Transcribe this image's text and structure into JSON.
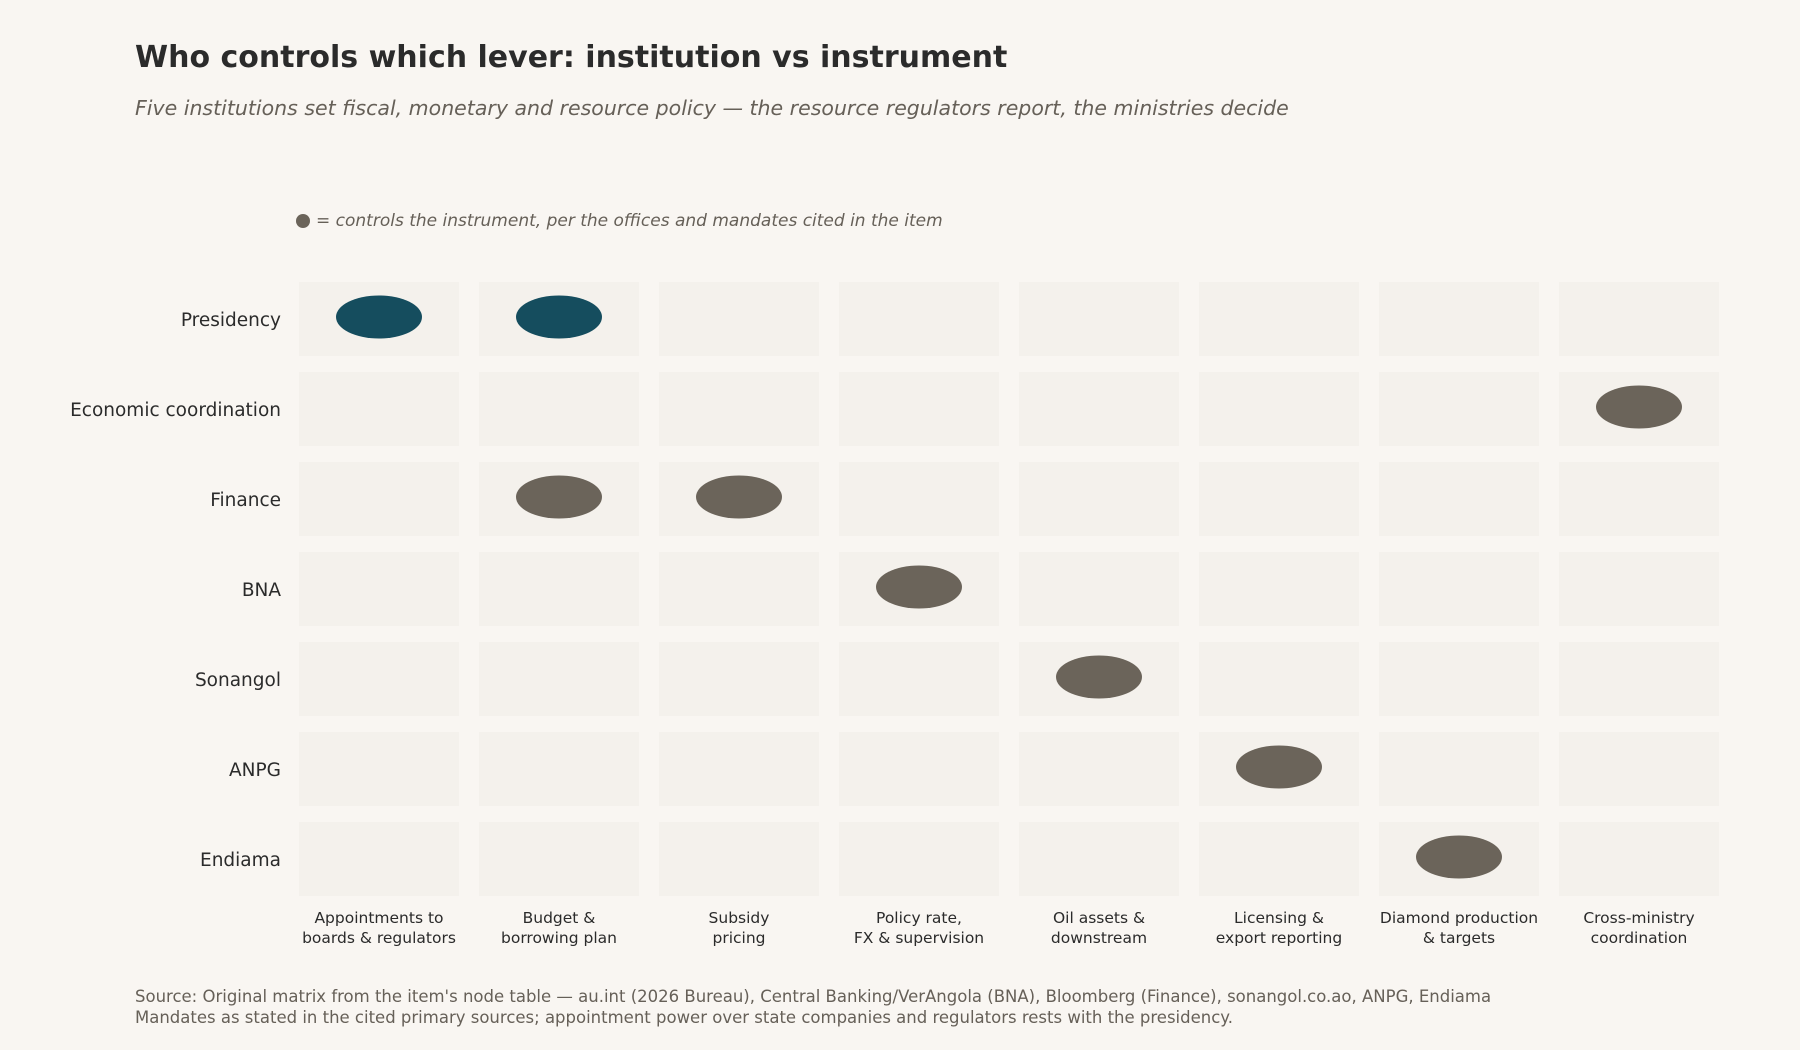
{
  "title": "Who controls which lever: institution vs instrument",
  "subtitle": "Five institutions set fiscal, monetary and resource policy — the resource regulators report, the ministries decide",
  "legend": {
    "symbol": "●",
    "text": "= controls the instrument, per the offices and mandates cited in the item"
  },
  "source": {
    "line1": "Source: Original matrix from the item's node table — au.int (2026 Bureau), Central Banking/VerAngola (BNA), Bloomberg (Finance), sonangol.co.ao, ANPG, Endiama",
    "line2": "Mandates as stated in the cited primary sources; appointment power over state companies and regulators rests with the presidency."
  },
  "colors": {
    "background": "#f9f6f2",
    "cell": "#f4f1ec",
    "presidency_dot": "#154d5e",
    "dot": "#6b645a",
    "text": "#2b2b2b",
    "muted": "#666058"
  },
  "chart_data": {
    "type": "matrix",
    "rows": [
      "Presidency",
      "Economic coordination",
      "Finance",
      "BNA",
      "Sonangol",
      "ANPG",
      "Endiama"
    ],
    "columns": [
      [
        "Appointments to",
        "boards & regulators"
      ],
      [
        "Budget &",
        "borrowing plan"
      ],
      [
        "Subsidy",
        "pricing"
      ],
      [
        "Policy rate,",
        "FX & supervision"
      ],
      [
        "Oil assets &",
        "downstream"
      ],
      [
        "Licensing &",
        "export reporting"
      ],
      [
        "Diamond production",
        "& targets"
      ],
      [
        "Cross-ministry",
        "coordination"
      ]
    ],
    "controls": [
      {
        "row": "Presidency",
        "column": 0,
        "highlight": true
      },
      {
        "row": "Presidency",
        "column": 1,
        "highlight": true
      },
      {
        "row": "Economic coordination",
        "column": 7,
        "highlight": false
      },
      {
        "row": "Finance",
        "column": 1,
        "highlight": false
      },
      {
        "row": "Finance",
        "column": 2,
        "highlight": false
      },
      {
        "row": "BNA",
        "column": 3,
        "highlight": false
      },
      {
        "row": "Sonangol",
        "column": 4,
        "highlight": false
      },
      {
        "row": "ANPG",
        "column": 5,
        "highlight": false
      },
      {
        "row": "Endiama",
        "column": 6,
        "highlight": false
      }
    ]
  }
}
